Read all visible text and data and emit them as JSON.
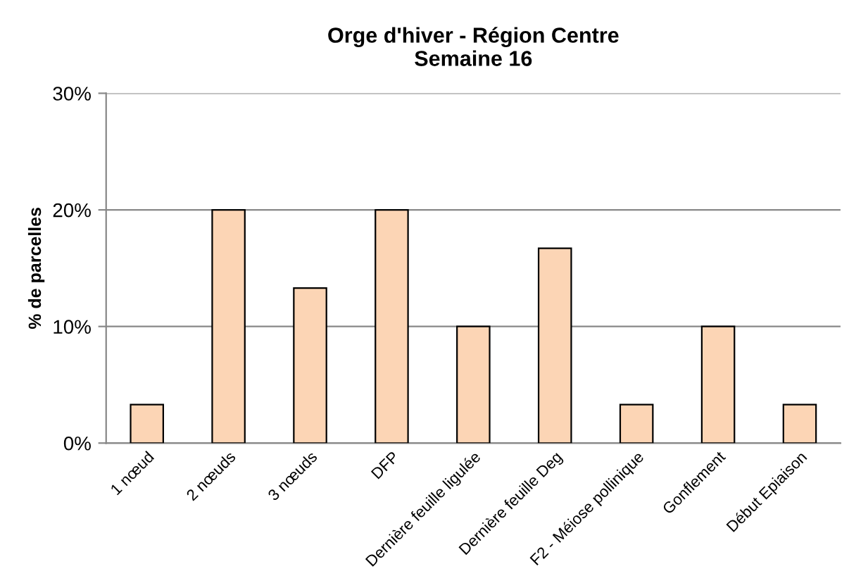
{
  "chart_data": {
    "type": "bar",
    "title": "Orge d'hiver - Région Centre\nSemaine 16",
    "ylabel": "% de parcelles",
    "categories": [
      "1 nœud",
      "2 nœuds",
      "3 nœuds",
      "DFP",
      "Dernière feuille ligulée",
      "Dernière feuille Deg",
      "F2 - Méiose pollinique",
      "Gonflement",
      "Début Epiaison"
    ],
    "values": [
      3.3,
      20,
      13.3,
      20,
      10,
      16.7,
      3.3,
      10,
      3.3
    ],
    "color": "#fcd5b5",
    "ylim": [
      0,
      30
    ],
    "yticks": [
      {
        "value": 0,
        "label": "0%"
      },
      {
        "value": 10,
        "label": "10%"
      },
      {
        "value": 20,
        "label": "20%"
      },
      {
        "value": 30,
        "label": "30%"
      }
    ],
    "grid": "y"
  }
}
